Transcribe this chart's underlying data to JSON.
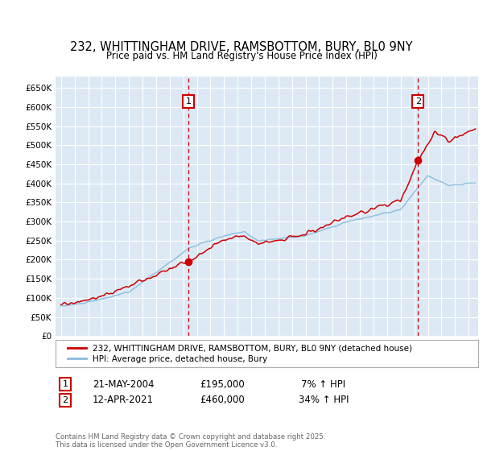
{
  "title_line1": "232, WHITTINGHAM DRIVE, RAMSBOTTOM, BURY, BL0 9NY",
  "title_line2": "Price paid vs. HM Land Registry's House Price Index (HPI)",
  "background_color": "#dce9f5",
  "red_line_color": "#cc0000",
  "blue_line_color": "#88bbdd",
  "sale1_date": "21-MAY-2004",
  "sale1_price": 195000,
  "sale1_hpi": "7% ↑ HPI",
  "sale2_date": "12-APR-2021",
  "sale2_price": 460000,
  "sale2_hpi": "34% ↑ HPI",
  "legend_label1": "232, WHITTINGHAM DRIVE, RAMSBOTTOM, BURY, BL0 9NY (detached house)",
  "legend_label2": "HPI: Average price, detached house, Bury",
  "footer_text": "Contains HM Land Registry data © Crown copyright and database right 2025.\nThis data is licensed under the Open Government Licence v3.0.",
  "ylim": [
    0,
    680000
  ],
  "sale1_year": 2004.38,
  "sale2_year": 2021.28
}
